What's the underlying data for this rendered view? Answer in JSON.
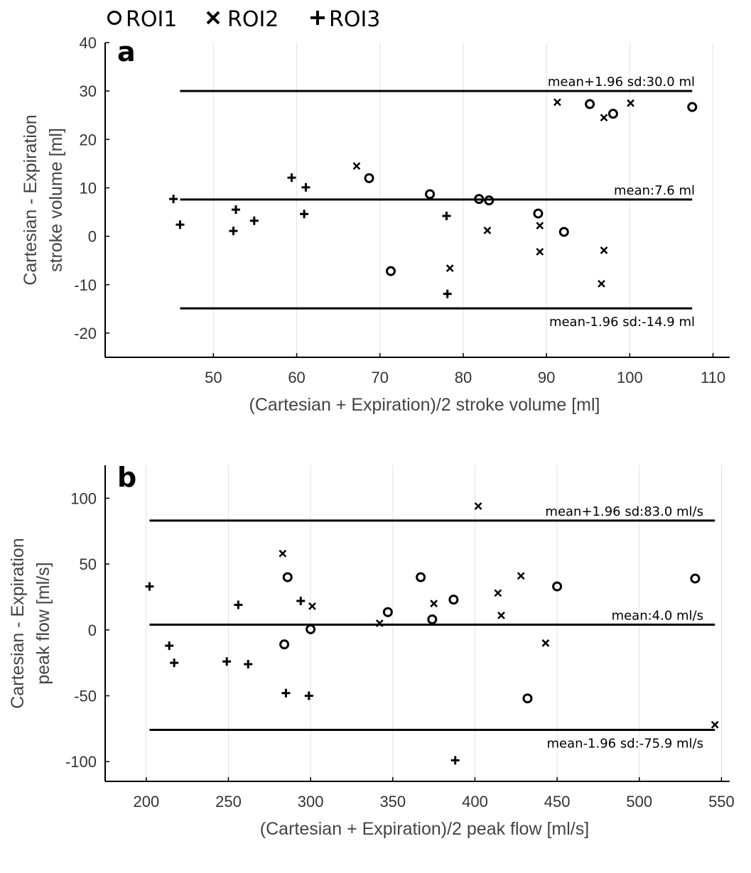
{
  "legend": {
    "items": [
      {
        "symbol": "circle",
        "label": "ROI1"
      },
      {
        "symbol": "x",
        "label": "ROI2"
      },
      {
        "symbol": "plus",
        "label": "ROI3"
      }
    ]
  },
  "chart_data": [
    {
      "type": "scatter",
      "panel_label": "a",
      "title": "",
      "xlabel": "(Cartesian + Expiration)/2 stroke volume [ml]",
      "ylabel": [
        "Cartesian - Expiration",
        "stroke volume [ml]"
      ],
      "xlim": [
        37,
        112
      ],
      "ylim": [
        -25,
        40
      ],
      "xticks": [
        50,
        60,
        70,
        80,
        90,
        100,
        110
      ],
      "yticks": [
        -20,
        -10,
        0,
        10,
        20,
        30,
        40
      ],
      "xtick_labels": [
        "50",
        "60",
        "70",
        "80",
        "90",
        "100",
        "110"
      ],
      "ytick_labels": [
        "-20",
        "-10",
        "0",
        "10",
        "20",
        "30",
        "40"
      ],
      "grid": "vertical",
      "reference_lines": [
        {
          "name": "upper-loa",
          "y": 30.0,
          "x_range": [
            46,
            107.5
          ],
          "label": "mean+1.96 sd:30.0 ml"
        },
        {
          "name": "mean",
          "y": 7.6,
          "x_range": [
            46,
            107.5
          ],
          "label": "mean:7.6 ml"
        },
        {
          "name": "lower-loa",
          "y": -14.9,
          "x_range": [
            46,
            107.5
          ],
          "label": "mean-1.96 sd:-14.9 ml"
        }
      ],
      "series": [
        {
          "name": "ROI1",
          "marker": "circle",
          "points": [
            [
              68.7,
              12.0
            ],
            [
              71.3,
              -7.2
            ],
            [
              76.0,
              8.7
            ],
            [
              81.9,
              7.7
            ],
            [
              83.1,
              7.4
            ],
            [
              89.0,
              4.7
            ],
            [
              92.1,
              0.9
            ],
            [
              95.2,
              27.3
            ],
            [
              98.0,
              25.3
            ],
            [
              107.5,
              26.7
            ]
          ]
        },
        {
          "name": "ROI2",
          "marker": "x",
          "points": [
            [
              67.2,
              14.5
            ],
            [
              78.4,
              -6.6
            ],
            [
              82.9,
              1.2
            ],
            [
              89.2,
              2.2
            ],
            [
              89.2,
              -3.2
            ],
            [
              91.3,
              27.7
            ],
            [
              96.6,
              -9.8
            ],
            [
              96.9,
              24.5
            ],
            [
              96.9,
              -2.9
            ],
            [
              100.1,
              27.5
            ]
          ]
        },
        {
          "name": "ROI3",
          "marker": "plus",
          "points": [
            [
              45.2,
              7.7
            ],
            [
              46.0,
              2.4
            ],
            [
              52.4,
              1.1
            ],
            [
              52.7,
              5.5
            ],
            [
              54.9,
              3.2
            ],
            [
              59.4,
              12.1
            ],
            [
              60.9,
              4.6
            ],
            [
              61.1,
              10.1
            ],
            [
              78.0,
              4.2
            ],
            [
              78.1,
              -11.9
            ]
          ]
        }
      ]
    },
    {
      "type": "scatter",
      "panel_label": "b",
      "title": "",
      "xlabel": "(Cartesian + Expiration)/2 peak flow [ml/s]",
      "ylabel": [
        "Cartesian - Expiration",
        "peak flow [ml/s]"
      ],
      "xlim": [
        175,
        555
      ],
      "ylim": [
        -115,
        125
      ],
      "xticks": [
        200,
        250,
        300,
        350,
        400,
        450,
        500,
        550
      ],
      "yticks": [
        -100,
        -50,
        0,
        50,
        100
      ],
      "xtick_labels": [
        "200",
        "250",
        "300",
        "350",
        "400",
        "450",
        "500",
        "550"
      ],
      "ytick_labels": [
        "-100",
        "-50",
        "0",
        "50",
        "100"
      ],
      "grid": "vertical",
      "reference_lines": [
        {
          "name": "upper-loa",
          "y": 83.0,
          "x_range": [
            202,
            546
          ],
          "label": "mean+1.96 sd:83.0 ml/s"
        },
        {
          "name": "mean",
          "y": 4.0,
          "x_range": [
            202,
            546
          ],
          "label": "mean:4.0 ml/s"
        },
        {
          "name": "lower-loa",
          "y": -75.9,
          "x_range": [
            202,
            546
          ],
          "label": "mean-1.96 sd:-75.9 ml/s"
        }
      ],
      "series": [
        {
          "name": "ROI1",
          "marker": "circle",
          "points": [
            [
              284,
              -11
            ],
            [
              286,
              40
            ],
            [
              300,
              0.5
            ],
            [
              347,
              13.5
            ],
            [
              367,
              40
            ],
            [
              374,
              8
            ],
            [
              387,
              23
            ],
            [
              432,
              -52
            ],
            [
              450,
              33
            ],
            [
              534,
              39
            ]
          ]
        },
        {
          "name": "ROI2",
          "marker": "x",
          "points": [
            [
              283,
              58
            ],
            [
              301,
              18
            ],
            [
              342,
              5
            ],
            [
              375,
              20
            ],
            [
              402,
              94
            ],
            [
              414,
              28
            ],
            [
              416,
              11
            ],
            [
              428,
              41
            ],
            [
              443,
              -10
            ],
            [
              546,
              -72
            ]
          ]
        },
        {
          "name": "ROI3",
          "marker": "plus",
          "points": [
            [
              202,
              33
            ],
            [
              214,
              -12
            ],
            [
              217,
              -25
            ],
            [
              249,
              -24
            ],
            [
              256,
              19
            ],
            [
              262,
              -26
            ],
            [
              285,
              -48
            ],
            [
              294,
              22
            ],
            [
              299,
              -50
            ],
            [
              388,
              -99
            ]
          ]
        }
      ]
    }
  ]
}
